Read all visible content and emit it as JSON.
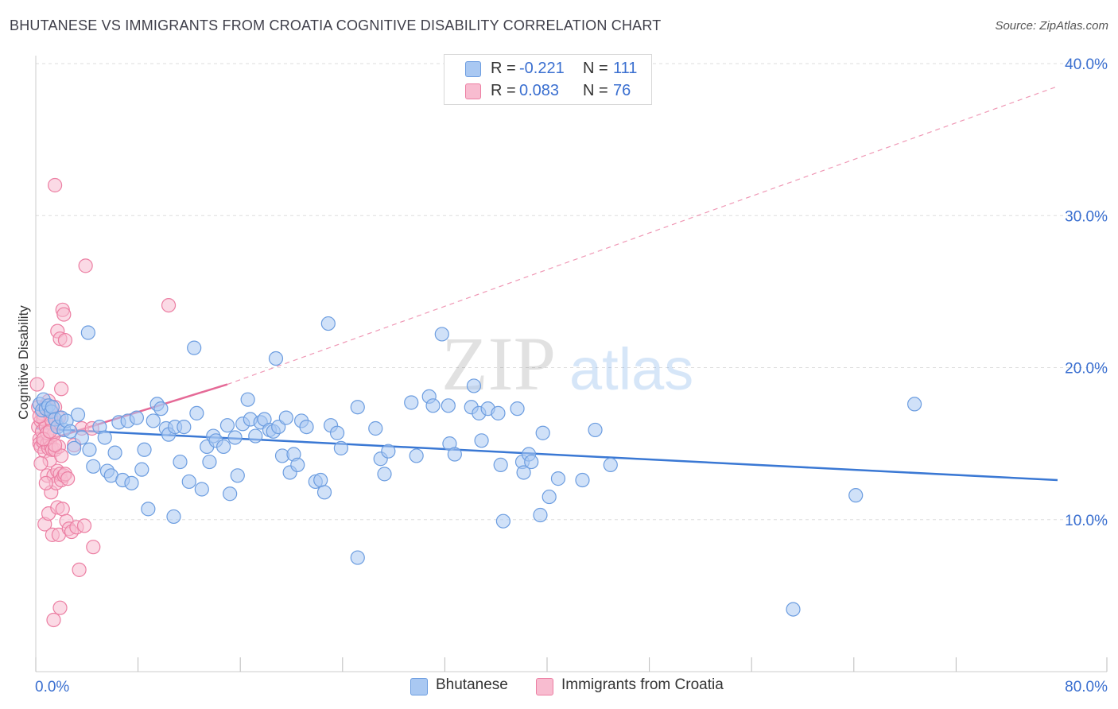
{
  "title": "BHUTANESE VS IMMIGRANTS FROM CROATIA COGNITIVE DISABILITY CORRELATION CHART",
  "source": "Source: ZipAtlas.com",
  "watermark": {
    "zip": "ZIP",
    "atlas": "atlas"
  },
  "legend": {
    "r_label": "R =",
    "n_label": "N =",
    "rows": [
      {
        "r": "-0.221",
        "n": "111"
      },
      {
        "r": "0.083",
        "n": "76"
      }
    ]
  },
  "chart_data": {
    "type": "scatter",
    "title": "BHUTANESE VS IMMIGRANTS FROM CROATIA COGNITIVE DISABILITY CORRELATION CHART",
    "xlabel": "",
    "ylabel": "Cognitive Disability",
    "xlim": [
      0,
      80
    ],
    "ylim": [
      0,
      40
    ],
    "x_tick_labels": [
      "0.0%",
      "80.0%"
    ],
    "y_ticks": [
      10,
      20,
      30,
      40
    ],
    "y_tick_labels": [
      "10.0%",
      "20.0%",
      "30.0%",
      "40.0%"
    ],
    "colors": {
      "bhutanese_fill": "#a9c8f2",
      "bhutanese_stroke": "#6c9de0",
      "bhutanese_line": "#3a78d4",
      "croatia_fill": "#f8bcd0",
      "croatia_stroke": "#ec7fa3",
      "croatia_line": "#e56a97",
      "tick_label": "#3a6fd0",
      "grid": "#dddddd"
    },
    "series": [
      {
        "name": "Bhutanese",
        "trend": {
          "x": [
            0,
            80
          ],
          "y": [
            16.0,
            12.6
          ],
          "style": "solid"
        },
        "points": [
          [
            0.3,
            17.6
          ],
          [
            0.5,
            17.2
          ],
          [
            0.6,
            17.9
          ],
          [
            0.8,
            17.3
          ],
          [
            1.0,
            17.5
          ],
          [
            1.2,
            17.1
          ],
          [
            1.3,
            17.4
          ],
          [
            1.5,
            16.6
          ],
          [
            1.7,
            16.1
          ],
          [
            2.0,
            16.7
          ],
          [
            2.2,
            15.9
          ],
          [
            2.4,
            16.5
          ],
          [
            2.7,
            15.8
          ],
          [
            3.0,
            14.7
          ],
          [
            3.3,
            16.9
          ],
          [
            3.6,
            15.4
          ],
          [
            4.2,
            14.6
          ],
          [
            4.1,
            22.3
          ],
          [
            4.5,
            13.5
          ],
          [
            5.0,
            16.1
          ],
          [
            5.4,
            15.4
          ],
          [
            5.6,
            13.2
          ],
          [
            5.9,
            12.9
          ],
          [
            6.2,
            14.4
          ],
          [
            6.5,
            16.4
          ],
          [
            6.8,
            12.6
          ],
          [
            7.2,
            16.5
          ],
          [
            7.5,
            12.4
          ],
          [
            7.9,
            16.7
          ],
          [
            8.3,
            13.3
          ],
          [
            8.5,
            14.6
          ],
          [
            8.8,
            10.7
          ],
          [
            9.2,
            16.5
          ],
          [
            9.5,
            17.6
          ],
          [
            9.8,
            17.3
          ],
          [
            10.2,
            16.0
          ],
          [
            10.4,
            15.6
          ],
          [
            10.8,
            10.2
          ],
          [
            10.9,
            16.1
          ],
          [
            11.3,
            13.8
          ],
          [
            11.6,
            16.1
          ],
          [
            12.0,
            12.5
          ],
          [
            12.4,
            21.3
          ],
          [
            12.6,
            17.0
          ],
          [
            13.0,
            12.0
          ],
          [
            13.4,
            14.8
          ],
          [
            13.6,
            13.8
          ],
          [
            13.9,
            15.5
          ],
          [
            14.1,
            15.2
          ],
          [
            14.7,
            14.8
          ],
          [
            15.0,
            16.2
          ],
          [
            15.2,
            11.7
          ],
          [
            15.6,
            15.4
          ],
          [
            15.8,
            12.9
          ],
          [
            16.2,
            16.3
          ],
          [
            16.6,
            17.9
          ],
          [
            16.8,
            16.6
          ],
          [
            17.2,
            15.5
          ],
          [
            17.6,
            16.4
          ],
          [
            17.9,
            16.6
          ],
          [
            18.3,
            15.9
          ],
          [
            18.6,
            15.8
          ],
          [
            18.8,
            20.6
          ],
          [
            19.0,
            16.1
          ],
          [
            19.3,
            14.2
          ],
          [
            19.6,
            16.7
          ],
          [
            19.9,
            13.1
          ],
          [
            20.2,
            14.3
          ],
          [
            20.5,
            13.6
          ],
          [
            20.8,
            16.5
          ],
          [
            21.2,
            16.1
          ],
          [
            21.9,
            12.5
          ],
          [
            22.3,
            12.6
          ],
          [
            22.6,
            11.8
          ],
          [
            22.9,
            22.9
          ],
          [
            23.1,
            16.2
          ],
          [
            23.6,
            15.7
          ],
          [
            23.9,
            14.7
          ],
          [
            25.2,
            17.4
          ],
          [
            25.2,
            7.5
          ],
          [
            26.6,
            16.0
          ],
          [
            27.0,
            14.0
          ],
          [
            27.3,
            13.0
          ],
          [
            27.6,
            14.5
          ],
          [
            29.4,
            17.7
          ],
          [
            29.8,
            14.2
          ],
          [
            30.8,
            18.1
          ],
          [
            31.1,
            17.5
          ],
          [
            31.8,
            22.2
          ],
          [
            32.3,
            17.5
          ],
          [
            32.4,
            15.0
          ],
          [
            32.8,
            14.3
          ],
          [
            34.1,
            17.4
          ],
          [
            34.3,
            18.8
          ],
          [
            34.7,
            17.0
          ],
          [
            34.9,
            15.2
          ],
          [
            35.4,
            17.3
          ],
          [
            36.2,
            17.0
          ],
          [
            36.4,
            13.6
          ],
          [
            36.6,
            9.9
          ],
          [
            37.7,
            17.3
          ],
          [
            38.1,
            13.8
          ],
          [
            38.2,
            13.1
          ],
          [
            38.6,
            14.3
          ],
          [
            38.8,
            13.8
          ],
          [
            39.5,
            10.3
          ],
          [
            39.7,
            15.7
          ],
          [
            40.2,
            11.5
          ],
          [
            40.9,
            12.7
          ],
          [
            42.8,
            12.6
          ],
          [
            43.8,
            15.9
          ],
          [
            45.0,
            13.6
          ],
          [
            59.3,
            4.1
          ],
          [
            64.2,
            11.6
          ],
          [
            68.8,
            17.6
          ]
        ]
      },
      {
        "name": "Immigrants from Croatia",
        "trend": {
          "x": [
            0,
            15
          ],
          "y": [
            15.0,
            18.9
          ],
          "style": "solid"
        },
        "trend_extension": {
          "x": [
            15,
            80
          ],
          "y": [
            18.9,
            38.5
          ],
          "style": "dashed"
        },
        "points": [
          [
            0.1,
            18.9
          ],
          [
            0.2,
            17.4
          ],
          [
            0.2,
            16.1
          ],
          [
            0.3,
            15.3
          ],
          [
            0.3,
            15.0
          ],
          [
            0.4,
            16.5
          ],
          [
            0.4,
            14.8
          ],
          [
            0.5,
            17.0
          ],
          [
            0.5,
            15.8
          ],
          [
            0.6,
            16.6
          ],
          [
            0.6,
            15.1
          ],
          [
            0.7,
            9.7
          ],
          [
            0.7,
            14.5
          ],
          [
            0.8,
            17.5
          ],
          [
            0.8,
            16.1
          ],
          [
            0.9,
            15.0
          ],
          [
            0.9,
            12.9
          ],
          [
            1.0,
            17.8
          ],
          [
            1.0,
            14.7
          ],
          [
            1.0,
            10.4
          ],
          [
            1.1,
            16.9
          ],
          [
            1.1,
            15.2
          ],
          [
            1.1,
            13.9
          ],
          [
            1.2,
            17.2
          ],
          [
            1.2,
            14.8
          ],
          [
            1.2,
            11.8
          ],
          [
            1.3,
            16.3
          ],
          [
            1.3,
            14.6
          ],
          [
            1.3,
            9.0
          ],
          [
            1.4,
            15.6
          ],
          [
            1.4,
            12.9
          ],
          [
            1.4,
            3.4
          ],
          [
            1.5,
            32.0
          ],
          [
            1.5,
            17.4
          ],
          [
            1.5,
            14.6
          ],
          [
            1.6,
            16.4
          ],
          [
            1.6,
            12.4
          ],
          [
            1.7,
            22.4
          ],
          [
            1.7,
            13.2
          ],
          [
            1.7,
            10.8
          ],
          [
            1.8,
            16.7
          ],
          [
            1.8,
            14.8
          ],
          [
            1.8,
            9.0
          ],
          [
            1.9,
            21.9
          ],
          [
            1.9,
            13.0
          ],
          [
            1.9,
            4.2
          ],
          [
            2.0,
            18.6
          ],
          [
            2.0,
            14.2
          ],
          [
            2.0,
            12.6
          ],
          [
            2.1,
            23.8
          ],
          [
            2.1,
            10.7
          ],
          [
            2.2,
            23.5
          ],
          [
            2.2,
            12.9
          ],
          [
            2.3,
            21.8
          ],
          [
            2.3,
            13.0
          ],
          [
            2.4,
            9.9
          ],
          [
            2.5,
            12.7
          ],
          [
            2.6,
            9.4
          ],
          [
            2.8,
            9.2
          ],
          [
            3.0,
            14.9
          ],
          [
            3.2,
            9.5
          ],
          [
            3.4,
            6.7
          ],
          [
            3.6,
            16.0
          ],
          [
            3.8,
            9.6
          ],
          [
            4.4,
            16.0
          ],
          [
            4.5,
            8.2
          ],
          [
            3.9,
            26.7
          ],
          [
            10.4,
            24.1
          ],
          [
            0.9,
            15.7
          ],
          [
            1.2,
            16.6
          ],
          [
            0.6,
            15.3
          ],
          [
            1.5,
            14.9
          ],
          [
            0.4,
            13.7
          ],
          [
            0.8,
            12.4
          ],
          [
            1.1,
            15.8
          ],
          [
            0.3,
            16.8
          ]
        ]
      }
    ]
  },
  "bottom_legend": [
    {
      "label": "Bhutanese"
    },
    {
      "label": "Immigrants from Croatia"
    }
  ]
}
